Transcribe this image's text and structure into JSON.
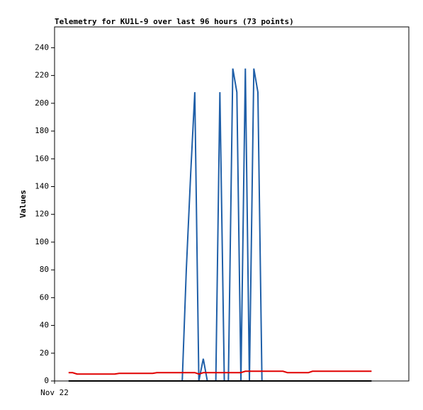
{
  "chart_data": {
    "type": "line",
    "title": "Telemetry for KU1L-9 over last 96 hours (73 points)",
    "ylabel": "Values",
    "x": [
      3.8,
      4.9,
      6.1,
      7.2,
      8.4,
      9.5,
      10.6,
      11.8,
      12.9,
      14.1,
      15.2,
      16.3,
      17.5,
      18.6,
      19.8,
      20.9,
      22.0,
      23.2,
      24.3,
      25.5,
      26.6,
      27.7,
      28.9,
      30.0,
      31.2,
      32.3,
      33.4,
      34.6,
      35.7,
      36.9,
      38.0,
      39.1,
      40.3,
      41.4,
      42.6,
      43.7,
      44.8,
      46.0,
      47.1,
      48.3,
      49.4,
      50.5,
      51.7,
      52.8,
      54.0,
      55.1,
      56.2,
      57.4,
      58.5,
      59.7,
      60.8,
      61.9,
      63.1,
      64.2,
      65.4,
      66.5,
      67.6,
      68.8,
      69.9,
      71.1,
      72.2,
      73.3,
      74.5,
      75.6,
      76.8,
      77.9,
      79.0,
      80.2,
      81.3,
      82.5,
      83.6,
      84.7,
      85.9
    ],
    "series": [
      {
        "color": "#1f5fa8",
        "values": [
          0,
          0,
          0,
          0,
          0,
          0,
          0,
          0,
          0,
          0,
          0,
          0,
          0,
          0,
          0,
          0,
          0,
          0,
          0,
          0,
          0,
          0,
          0,
          0,
          0,
          0,
          0,
          0,
          80,
          150,
          208,
          0,
          16,
          0,
          0,
          0,
          208,
          0,
          0,
          225,
          208,
          0,
          225,
          0,
          225,
          208,
          0,
          0,
          0,
          0,
          0,
          0,
          0,
          0,
          0,
          0,
          0,
          0,
          0,
          0,
          0,
          0,
          0,
          0,
          0,
          0,
          0,
          0,
          0,
          0,
          0,
          0,
          0
        ]
      },
      {
        "color": "#e00000",
        "values": [
          6,
          6,
          5,
          5,
          5,
          5,
          5,
          5,
          5,
          5,
          5,
          5,
          5.5,
          5.5,
          5.5,
          5.5,
          5.5,
          5.5,
          5.5,
          5.5,
          5.5,
          6,
          6,
          6,
          6,
          6,
          6,
          6,
          6,
          6,
          6,
          5,
          6,
          6,
          6,
          6,
          6,
          6,
          6,
          6,
          6,
          6,
          7,
          7,
          7,
          7,
          7,
          7,
          7,
          7,
          7,
          7,
          6,
          6,
          6,
          6,
          6,
          6,
          7,
          7,
          7,
          7,
          7,
          7,
          7,
          7,
          7,
          7,
          7,
          7,
          7,
          7,
          7
        ]
      },
      {
        "color": "#000000",
        "values": [
          0,
          0,
          0,
          0,
          0,
          0,
          0,
          0,
          0,
          0,
          0,
          0,
          0,
          0,
          0,
          0,
          0,
          0,
          0,
          0,
          0,
          0,
          0,
          0,
          0,
          0,
          0,
          0,
          0,
          0,
          0,
          0,
          0,
          0,
          0,
          0,
          0,
          0,
          0,
          0,
          0,
          0,
          0,
          0,
          0,
          0,
          0,
          0,
          0,
          0,
          0,
          0,
          0,
          0,
          0,
          0,
          0,
          0,
          0,
          0,
          0,
          0,
          0,
          0,
          0,
          0,
          0,
          0,
          0,
          0,
          0,
          0,
          0
        ]
      }
    ],
    "xlim": [
      0,
      96
    ],
    "xticks": [
      {
        "value": 0,
        "label": "Nov 22"
      }
    ],
    "ylim": [
      0,
      255
    ],
    "yticks": [
      0,
      20,
      40,
      60,
      80,
      100,
      120,
      140,
      160,
      180,
      200,
      220,
      240
    ],
    "grid": false
  }
}
